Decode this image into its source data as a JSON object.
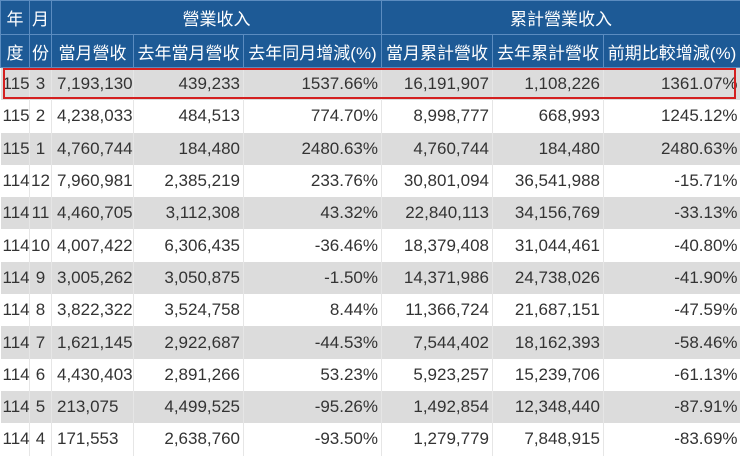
{
  "header": {
    "col_year_top": "年",
    "col_year_bottom": "度",
    "col_month_top": "月",
    "col_month_bottom": "份",
    "group_monthly": "營業收入",
    "group_cumulative": "累計營業收入",
    "columns": [
      "當月營收",
      "去年當月營收",
      "去年同月增減(%)",
      "當月累計營收",
      "去年累計營收",
      "前期比較增減(%)"
    ]
  },
  "highlight": {
    "row_index": 0,
    "color": "#d42020"
  },
  "colors": {
    "header_bg": "#1d5a96",
    "row_alt_bg": "#dcdcdc"
  },
  "rows": [
    {
      "year": "115",
      "month": "3",
      "rev": "7,193,130",
      "rev_ly": "439,233",
      "yoy": "1537.66%",
      "cum": "16,191,907",
      "cum_ly": "1,108,226",
      "cum_chg": "1361.07%"
    },
    {
      "year": "115",
      "month": "2",
      "rev": "4,238,033",
      "rev_ly": "484,513",
      "yoy": "774.70%",
      "cum": "8,998,777",
      "cum_ly": "668,993",
      "cum_chg": "1245.12%"
    },
    {
      "year": "115",
      "month": "1",
      "rev": "4,760,744",
      "rev_ly": "184,480",
      "yoy": "2480.63%",
      "cum": "4,760,744",
      "cum_ly": "184,480",
      "cum_chg": "2480.63%"
    },
    {
      "year": "114",
      "month": "12",
      "rev": "7,960,981",
      "rev_ly": "2,385,219",
      "yoy": "233.76%",
      "cum": "30,801,094",
      "cum_ly": "36,541,988",
      "cum_chg": "-15.71%"
    },
    {
      "year": "114",
      "month": "11",
      "rev": "4,460,705",
      "rev_ly": "3,112,308",
      "yoy": "43.32%",
      "cum": "22,840,113",
      "cum_ly": "34,156,769",
      "cum_chg": "-33.13%"
    },
    {
      "year": "114",
      "month": "10",
      "rev": "4,007,422",
      "rev_ly": "6,306,435",
      "yoy": "-36.46%",
      "cum": "18,379,408",
      "cum_ly": "31,044,461",
      "cum_chg": "-40.80%"
    },
    {
      "year": "114",
      "month": "9",
      "rev": "3,005,262",
      "rev_ly": "3,050,875",
      "yoy": "-1.50%",
      "cum": "14,371,986",
      "cum_ly": "24,738,026",
      "cum_chg": "-41.90%"
    },
    {
      "year": "114",
      "month": "8",
      "rev": "3,822,322",
      "rev_ly": "3,524,758",
      "yoy": "8.44%",
      "cum": "11,366,724",
      "cum_ly": "21,687,151",
      "cum_chg": "-47.59%"
    },
    {
      "year": "114",
      "month": "7",
      "rev": "1,621,145",
      "rev_ly": "2,922,687",
      "yoy": "-44.53%",
      "cum": "7,544,402",
      "cum_ly": "18,162,393",
      "cum_chg": "-58.46%"
    },
    {
      "year": "114",
      "month": "6",
      "rev": "4,430,403",
      "rev_ly": "2,891,266",
      "yoy": "53.23%",
      "cum": "5,923,257",
      "cum_ly": "15,239,706",
      "cum_chg": "-61.13%"
    },
    {
      "year": "114",
      "month": "5",
      "rev": "213,075",
      "rev_ly": "4,499,525",
      "yoy": "-95.26%",
      "cum": "1,492,854",
      "cum_ly": "12,348,440",
      "cum_chg": "-87.91%"
    },
    {
      "year": "114",
      "month": "4",
      "rev": "171,553",
      "rev_ly": "2,638,760",
      "yoy": "-93.50%",
      "cum": "1,279,779",
      "cum_ly": "7,848,915",
      "cum_chg": "-83.69%"
    }
  ]
}
